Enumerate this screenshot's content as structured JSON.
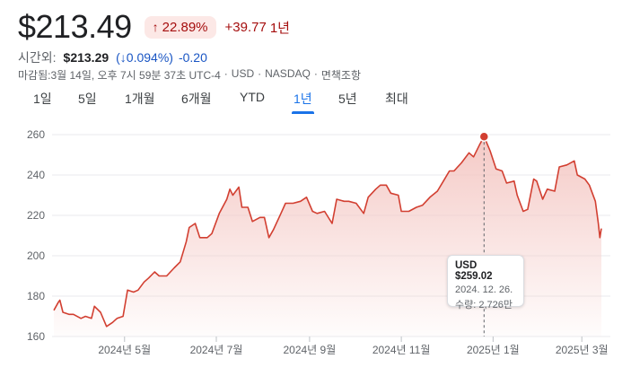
{
  "header": {
    "price": "$213.49",
    "change_arrow": "↑",
    "change_pct": "22.89%",
    "change_abs": "+39.77",
    "change_period": "1년"
  },
  "after_hours": {
    "label": "시간외:",
    "price": "$213.29",
    "pct": "(↓0.094%)",
    "abs": "-0.20"
  },
  "meta": {
    "close_time": "마감됨:3월 14일, 오후 7시 59분 37초 UTC-4",
    "currency": "USD",
    "exchange": "NASDAQ",
    "disclaimer": "면책조항",
    "separator": "·"
  },
  "tabs": [
    {
      "label": "1일",
      "active": false
    },
    {
      "label": "5일",
      "active": false
    },
    {
      "label": "1개월",
      "active": false
    },
    {
      "label": "6개월",
      "active": false
    },
    {
      "label": "YTD",
      "active": false
    },
    {
      "label": "1년",
      "active": true
    },
    {
      "label": "5년",
      "active": false
    },
    {
      "label": "최대",
      "active": false
    }
  ],
  "colors": {
    "line": "#d23f31",
    "fill_top": "#f4c7c3",
    "grid": "#e8eaed",
    "axis_text": "#5f6368",
    "tab_active": "#1a73e8",
    "negative": "#a50e0e",
    "positive_blue": "#1a56c4"
  },
  "tooltip": {
    "price": "USD $259.02",
    "date": "2024. 12. 26.",
    "volume": "수량: 2,726만"
  },
  "chart_data": {
    "type": "area",
    "title": "",
    "xlabel": "",
    "ylabel": "",
    "ylim": [
      160,
      260
    ],
    "yticks": [
      160,
      180,
      200,
      220,
      240,
      260
    ],
    "xlim": [
      "2024-03-15",
      "2025-03-14"
    ],
    "xticks": [
      {
        "date": "2024-05-01",
        "label": "2024년 5월"
      },
      {
        "date": "2024-07-01",
        "label": "2024년 7월"
      },
      {
        "date": "2024-09-01",
        "label": "2024년 9월"
      },
      {
        "date": "2024-11-01",
        "label": "2024년 11월"
      },
      {
        "date": "2025-01-01",
        "label": "2025년 1월"
      },
      {
        "date": "2025-03-01",
        "label": "2025년 3월"
      }
    ],
    "grid": true,
    "highlight": {
      "date": "2024-12-26",
      "value": 259.02
    },
    "series": [
      {
        "points": [
          [
            "2024-03-15",
            173
          ],
          [
            "2024-03-18",
            177
          ],
          [
            "2024-03-19",
            178
          ],
          [
            "2024-03-21",
            172
          ],
          [
            "2024-03-25",
            171
          ],
          [
            "2024-03-28",
            171
          ],
          [
            "2024-04-02",
            169
          ],
          [
            "2024-04-05",
            170
          ],
          [
            "2024-04-09",
            169
          ],
          [
            "2024-04-11",
            175
          ],
          [
            "2024-04-15",
            172
          ],
          [
            "2024-04-19",
            165
          ],
          [
            "2024-04-23",
            167
          ],
          [
            "2024-04-26",
            169
          ],
          [
            "2024-04-30",
            170
          ],
          [
            "2024-05-03",
            183
          ],
          [
            "2024-05-07",
            182
          ],
          [
            "2024-05-10",
            183
          ],
          [
            "2024-05-14",
            187
          ],
          [
            "2024-05-17",
            189
          ],
          [
            "2024-05-21",
            192
          ],
          [
            "2024-05-24",
            190
          ],
          [
            "2024-05-29",
            190
          ],
          [
            "2024-06-03",
            194
          ],
          [
            "2024-06-07",
            197
          ],
          [
            "2024-06-11",
            207
          ],
          [
            "2024-06-13",
            214
          ],
          [
            "2024-06-17",
            216
          ],
          [
            "2024-06-20",
            209
          ],
          [
            "2024-06-25",
            209
          ],
          [
            "2024-06-28",
            211
          ],
          [
            "2024-07-03",
            221
          ],
          [
            "2024-07-08",
            228
          ],
          [
            "2024-07-10",
            233
          ],
          [
            "2024-07-12",
            230
          ],
          [
            "2024-07-16",
            234
          ],
          [
            "2024-07-18",
            224
          ],
          [
            "2024-07-22",
            224
          ],
          [
            "2024-07-25",
            217
          ],
          [
            "2024-07-30",
            219
          ],
          [
            "2024-08-02",
            219
          ],
          [
            "2024-08-05",
            209
          ],
          [
            "2024-08-08",
            213
          ],
          [
            "2024-08-13",
            221
          ],
          [
            "2024-08-16",
            226
          ],
          [
            "2024-08-21",
            226
          ],
          [
            "2024-08-26",
            227
          ],
          [
            "2024-08-30",
            229
          ],
          [
            "2024-09-03",
            222
          ],
          [
            "2024-09-06",
            221
          ],
          [
            "2024-09-11",
            222
          ],
          [
            "2024-09-16",
            216
          ],
          [
            "2024-09-19",
            228
          ],
          [
            "2024-09-24",
            227
          ],
          [
            "2024-09-27",
            227
          ],
          [
            "2024-10-02",
            226
          ],
          [
            "2024-10-07",
            221
          ],
          [
            "2024-10-10",
            229
          ],
          [
            "2024-10-15",
            233
          ],
          [
            "2024-10-18",
            235
          ],
          [
            "2024-10-22",
            235
          ],
          [
            "2024-10-25",
            231
          ],
          [
            "2024-10-30",
            230
          ],
          [
            "2024-11-01",
            222
          ],
          [
            "2024-11-06",
            222
          ],
          [
            "2024-11-11",
            224
          ],
          [
            "2024-11-15",
            225
          ],
          [
            "2024-11-20",
            229
          ],
          [
            "2024-11-25",
            232
          ],
          [
            "2024-11-29",
            237
          ],
          [
            "2024-12-03",
            242
          ],
          [
            "2024-12-06",
            242
          ],
          [
            "2024-12-11",
            246
          ],
          [
            "2024-12-16",
            251
          ],
          [
            "2024-12-19",
            249
          ],
          [
            "2024-12-23",
            255
          ],
          [
            "2024-12-26",
            259.02
          ],
          [
            "2024-12-30",
            252
          ],
          [
            "2025-01-03",
            243
          ],
          [
            "2025-01-07",
            242
          ],
          [
            "2025-01-10",
            236
          ],
          [
            "2025-01-15",
            237
          ],
          [
            "2025-01-17",
            230
          ],
          [
            "2025-01-21",
            222
          ],
          [
            "2025-01-24",
            223
          ],
          [
            "2025-01-28",
            238
          ],
          [
            "2025-01-30",
            237
          ],
          [
            "2025-02-03",
            228
          ],
          [
            "2025-02-06",
            233
          ],
          [
            "2025-02-11",
            232
          ],
          [
            "2025-02-14",
            244
          ],
          [
            "2025-02-19",
            245
          ],
          [
            "2025-02-24",
            247
          ],
          [
            "2025-02-26",
            240
          ],
          [
            "2025-03-03",
            238
          ],
          [
            "2025-03-06",
            235
          ],
          [
            "2025-03-10",
            227
          ],
          [
            "2025-03-12",
            216
          ],
          [
            "2025-03-13",
            209
          ],
          [
            "2025-03-14",
            213.49
          ]
        ]
      }
    ]
  }
}
